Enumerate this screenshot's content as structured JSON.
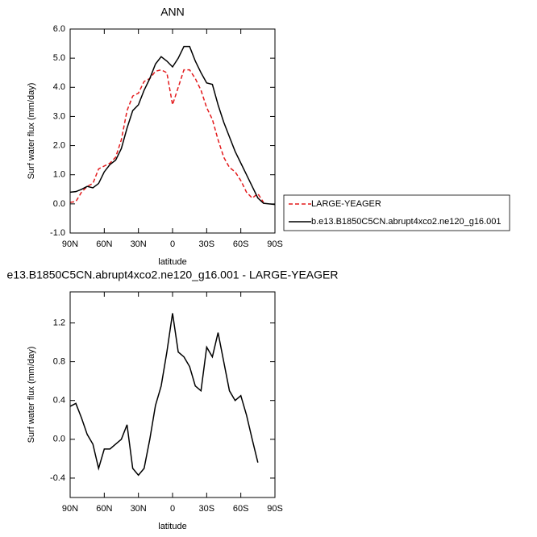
{
  "chart_data": [
    {
      "type": "line",
      "title": "ANN",
      "xlabel": "latitude",
      "ylabel": "Surf water flux (mm/day)",
      "x": [
        90,
        85,
        80,
        75,
        70,
        65,
        60,
        55,
        50,
        45,
        40,
        35,
        30,
        25,
        20,
        15,
        10,
        5,
        0,
        -5,
        -10,
        -15,
        -20,
        -25,
        -30,
        -35,
        -40,
        -45,
        -50,
        -55,
        -60,
        -65,
        -70,
        -75,
        -80,
        -85,
        -90
      ],
      "series": [
        {
          "name": "LARGE-YEAGER",
          "color": "#e31a1c",
          "dash": true,
          "values": [
            0.05,
            0.08,
            0.4,
            0.6,
            0.7,
            1.2,
            1.3,
            1.4,
            1.6,
            2.2,
            3.2,
            3.7,
            3.8,
            4.2,
            4.3,
            4.55,
            4.6,
            4.5,
            3.4,
            4.0,
            4.6,
            4.6,
            4.3,
            3.9,
            3.3,
            2.9,
            2.2,
            1.6,
            1.25,
            1.1,
            0.8,
            0.4,
            0.2,
            0.35,
            0.05,
            null,
            null
          ]
        },
        {
          "name": "b.e13.B1850C5CN.abrupt4xco2.ne120_g16.001",
          "color": "#000000",
          "dash": false,
          "values": [
            0.4,
            0.42,
            0.5,
            0.6,
            0.55,
            0.7,
            1.1,
            1.35,
            1.5,
            1.9,
            2.6,
            3.2,
            3.4,
            3.9,
            4.3,
            4.8,
            5.05,
            4.9,
            4.7,
            5.0,
            5.4,
            5.4,
            4.9,
            4.5,
            4.15,
            4.1,
            3.4,
            2.8,
            2.3,
            1.8,
            1.4,
            1.0,
            0.6,
            0.2,
            0.02,
            0.0,
            -0.02
          ]
        }
      ],
      "xlim": [
        90,
        -90
      ],
      "xticks": [
        {
          "value": 90,
          "label": "90N"
        },
        {
          "value": 60,
          "label": "60N"
        },
        {
          "value": 30,
          "label": "30N"
        },
        0,
        {
          "value": -30,
          "label": "30S"
        },
        {
          "value": -60,
          "label": "60S"
        },
        {
          "value": -90,
          "label": "90S"
        }
      ],
      "ylim": [
        -1,
        6
      ],
      "yticks": [
        {
          "value": -1,
          "label": "-1.0"
        },
        {
          "value": 0,
          "label": "0.0"
        },
        {
          "value": 1,
          "label": "1.0"
        },
        {
          "value": 2,
          "label": "2.0"
        },
        {
          "value": 3,
          "label": "3.0"
        },
        {
          "value": 4,
          "label": "4.0"
        },
        {
          "value": 5,
          "label": "5.0"
        },
        {
          "value": 6,
          "label": "6.0"
        }
      ],
      "legend": "outside-right"
    },
    {
      "type": "line",
      "title": "e13.B1850C5CN.abrupt4xco2.ne120_g16.001 - LARGE-YEAGER",
      "xlabel": "latitude",
      "ylabel": "Surf water flux (mm/day)",
      "x": [
        90,
        85,
        80,
        75,
        70,
        65,
        60,
        55,
        50,
        45,
        40,
        35,
        30,
        25,
        20,
        15,
        10,
        5,
        0,
        -5,
        -10,
        -15,
        -20,
        -25,
        -30,
        -35,
        -40,
        -45,
        -50,
        -55,
        -60,
        -65,
        -70,
        -75,
        -80,
        -85,
        -90
      ],
      "color": "#000000",
      "values": [
        0.34,
        0.37,
        0.22,
        0.05,
        -0.05,
        -0.3,
        -0.1,
        -0.1,
        -0.05,
        0.0,
        0.15,
        -0.3,
        -0.37,
        -0.3,
        0.0,
        0.35,
        0.55,
        0.9,
        1.3,
        0.9,
        0.85,
        0.75,
        0.55,
        0.5,
        0.95,
        0.85,
        1.1,
        0.8,
        0.5,
        0.4,
        0.45,
        0.25,
        0.0,
        -0.24,
        null,
        null,
        null
      ],
      "xlim": [
        90,
        -90
      ],
      "xticks": [
        {
          "value": 90,
          "label": "90N"
        },
        {
          "value": 60,
          "label": "60N"
        },
        {
          "value": 30,
          "label": "30N"
        },
        0,
        {
          "value": -30,
          "label": "30S"
        },
        {
          "value": -60,
          "label": "60S"
        },
        {
          "value": -90,
          "label": "90S"
        }
      ],
      "ylim": [
        -0.6,
        1.52
      ],
      "yticks": [
        -0.4,
        {
          "value": 0,
          "label": "0.0"
        },
        0.4,
        0.8,
        1.2
      ]
    }
  ]
}
